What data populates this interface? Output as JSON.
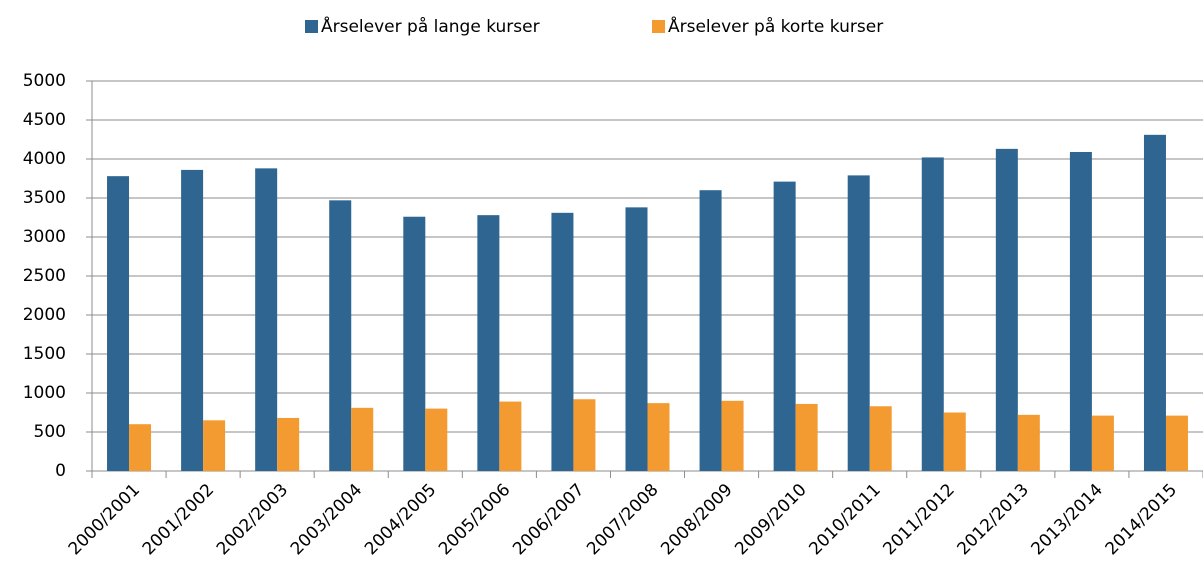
{
  "chart_data": {
    "type": "bar",
    "categories": [
      "2000/2001",
      "2001/2002",
      "2002/2003",
      "2003/2004",
      "2004/2005",
      "2005/2006",
      "2006/2007",
      "2007/2008",
      "2008/2009",
      "2009/2010",
      "2010/2011",
      "2011/2012",
      "2012/2013",
      "2013/2014",
      "2014/2015"
    ],
    "series": [
      {
        "name": "Årselever på lange kurser",
        "color": "#2e6591",
        "values": [
          3780,
          3860,
          3880,
          3470,
          3260,
          3280,
          3310,
          3380,
          3600,
          3710,
          3790,
          4020,
          4130,
          4090,
          4310
        ]
      },
      {
        "name": "Årselever på korte kurser",
        "color": "#f39b30",
        "values": [
          600,
          650,
          680,
          810,
          800,
          890,
          920,
          870,
          900,
          860,
          830,
          750,
          720,
          710,
          710
        ]
      }
    ],
    "ylim": [
      0,
      5000
    ],
    "yticks": [
      0,
      500,
      1000,
      1500,
      2000,
      2500,
      3000,
      3500,
      4000,
      4500,
      5000
    ],
    "grid": true,
    "legend": "top"
  }
}
